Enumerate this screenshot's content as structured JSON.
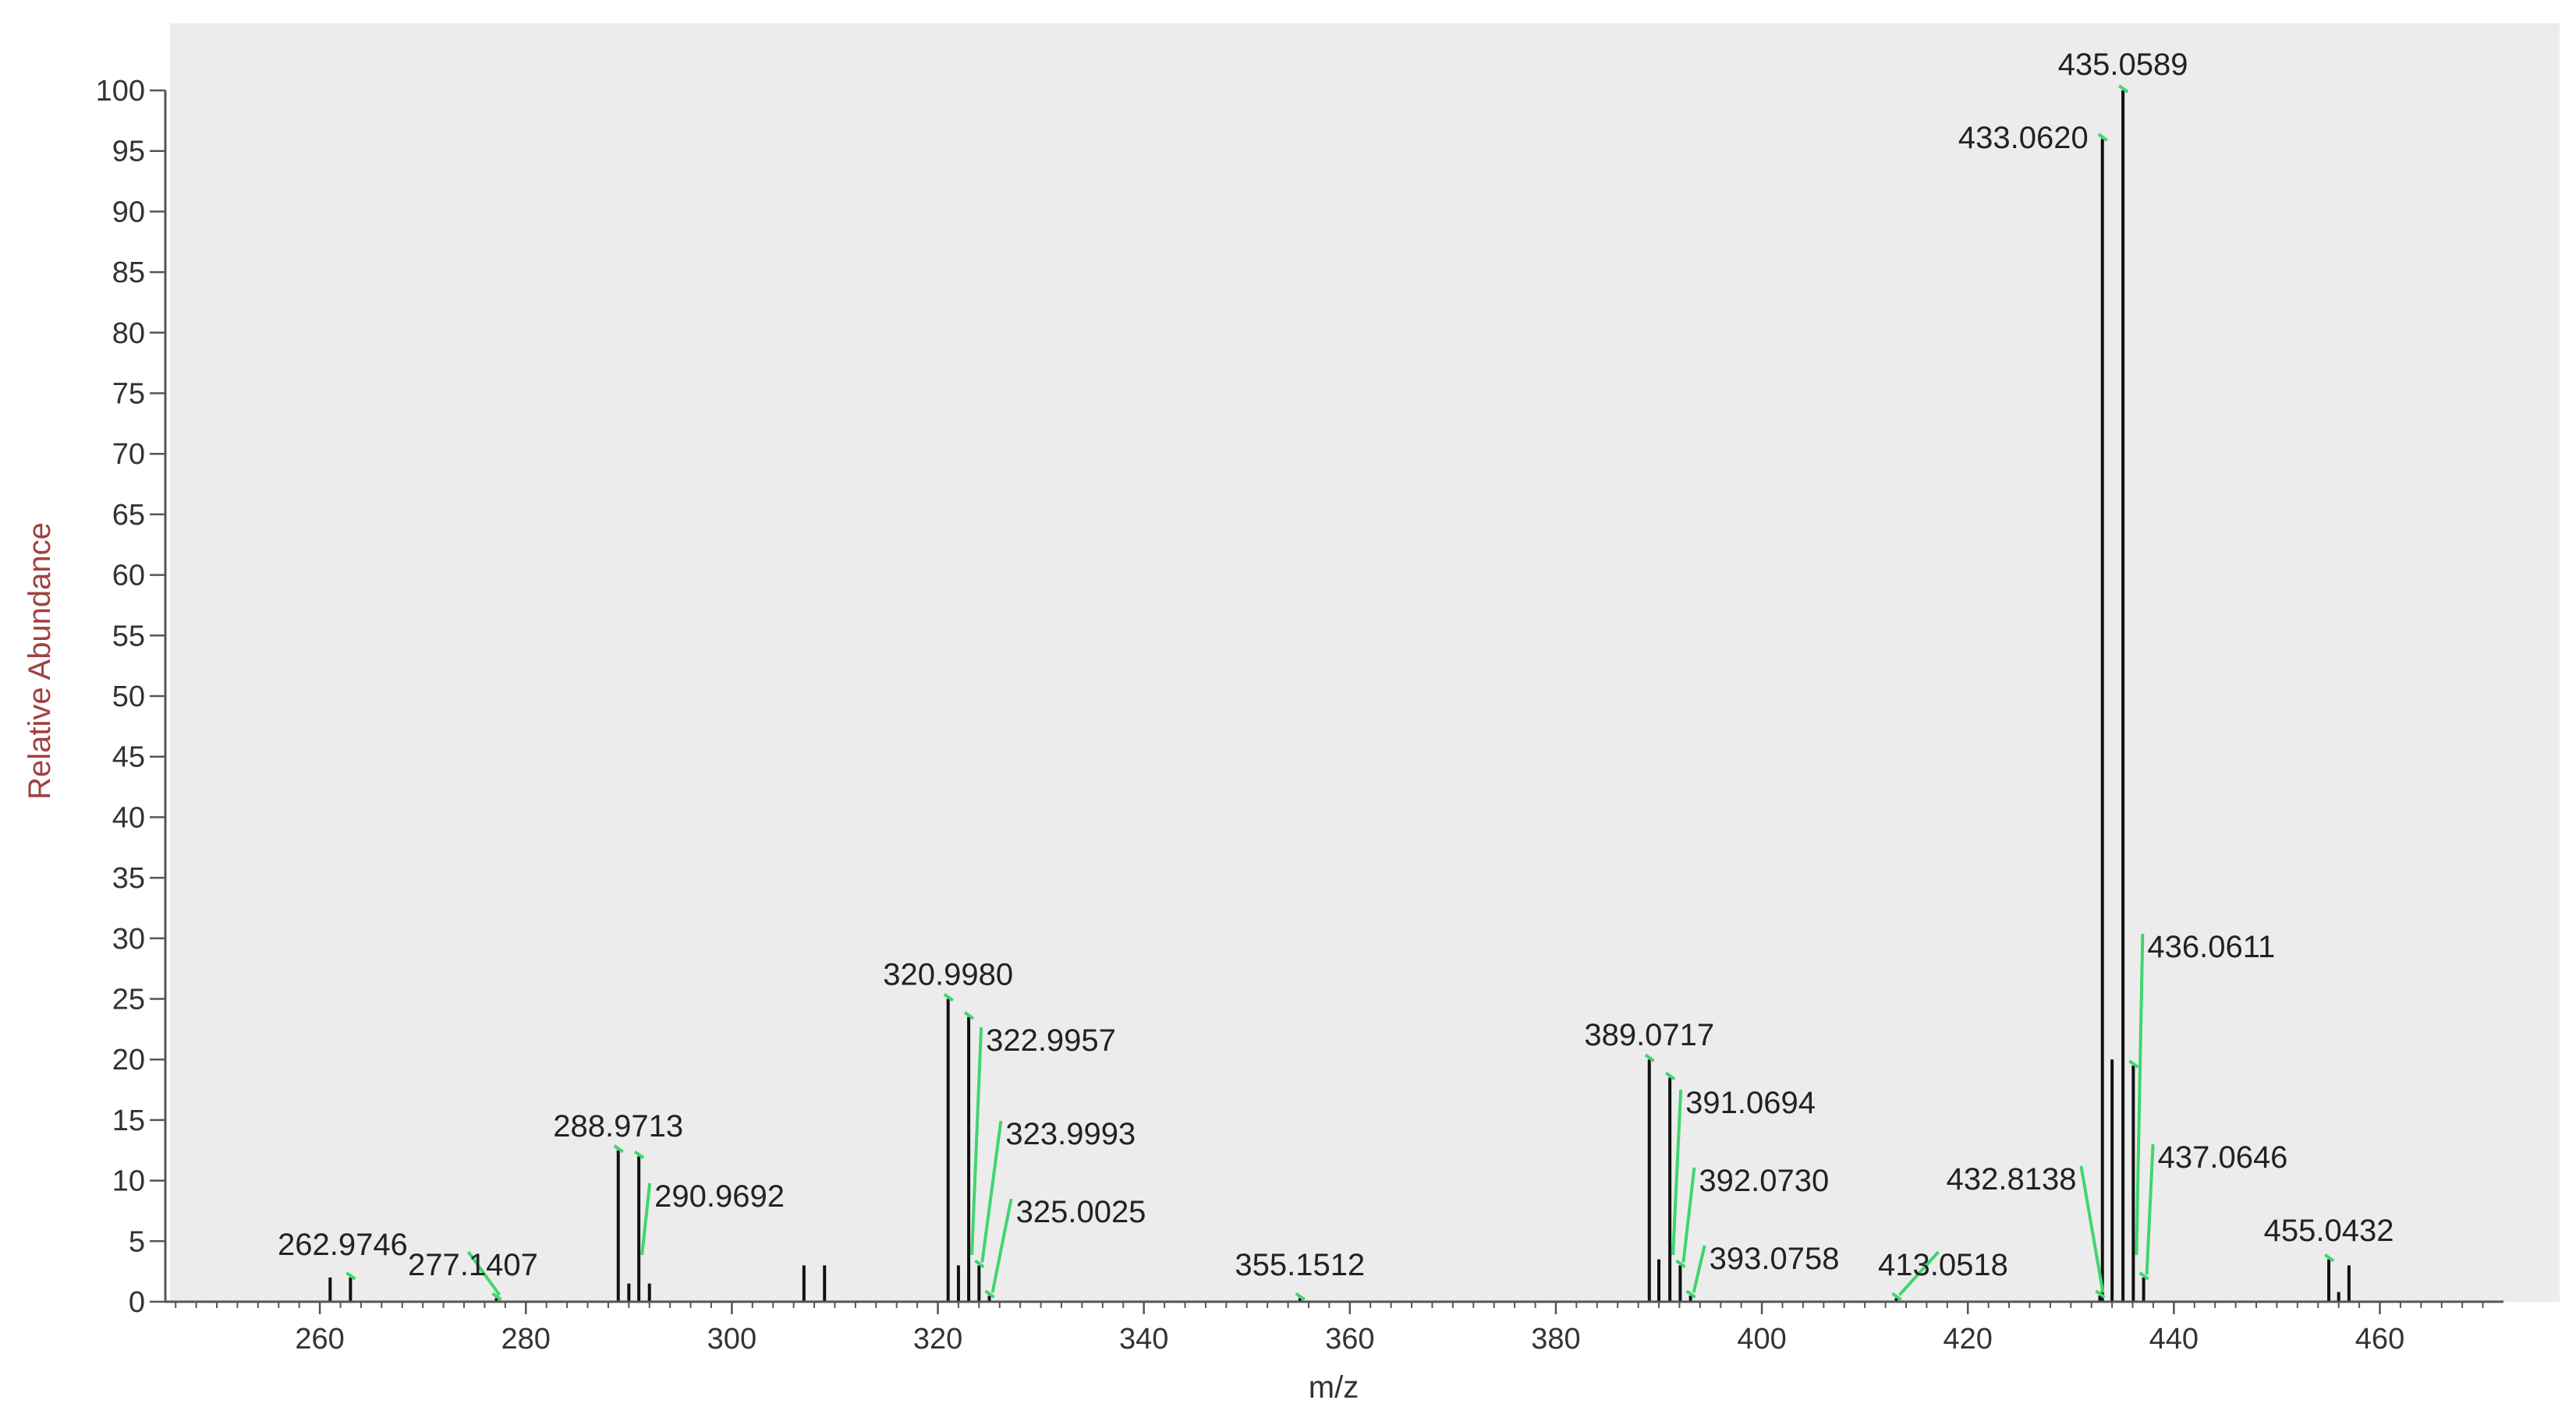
{
  "chart_data": {
    "type": "bar",
    "xlabel": "m/z",
    "ylabel": "Relative Abundance",
    "xlim": [
      245,
      472
    ],
    "ylim": [
      0,
      100
    ],
    "x_ticks": [
      260,
      280,
      300,
      320,
      340,
      360,
      380,
      400,
      420,
      440,
      460
    ],
    "y_ticks": [
      0,
      5,
      10,
      15,
      20,
      25,
      30,
      35,
      40,
      45,
      50,
      55,
      60,
      65,
      70,
      75,
      80,
      85,
      90,
      95,
      100
    ],
    "grid": false,
    "colors": {
      "plot_background": "#ececec",
      "peak": "#111111",
      "label_marker": "#3ed66e",
      "ylabel": "#a04040"
    },
    "peaks": [
      {
        "x": 261.0,
        "y": 2.0
      },
      {
        "x": 262.9746,
        "y": 2.0,
        "label": "262.9746"
      },
      {
        "x": 277.1407,
        "y": 0.3,
        "label": "277.1407"
      },
      {
        "x": 288.9713,
        "y": 12.5,
        "label": "288.9713"
      },
      {
        "x": 290.0,
        "y": 1.5
      },
      {
        "x": 290.9692,
        "y": 12.0,
        "label": "290.9692"
      },
      {
        "x": 292.0,
        "y": 1.5
      },
      {
        "x": 307.0,
        "y": 3.0
      },
      {
        "x": 309.0,
        "y": 3.0
      },
      {
        "x": 320.998,
        "y": 25.0,
        "label": "320.9980"
      },
      {
        "x": 322.0,
        "y": 3.0
      },
      {
        "x": 322.9957,
        "y": 23.5,
        "label": "322.9957"
      },
      {
        "x": 323.9993,
        "y": 3.0,
        "label": "323.9993"
      },
      {
        "x": 325.0025,
        "y": 0.5,
        "label": "325.0025"
      },
      {
        "x": 355.1512,
        "y": 0.3,
        "label": "355.1512"
      },
      {
        "x": 389.0717,
        "y": 20.0,
        "label": "389.0717"
      },
      {
        "x": 390.0,
        "y": 3.5
      },
      {
        "x": 391.0694,
        "y": 18.5,
        "label": "391.0694"
      },
      {
        "x": 392.073,
        "y": 3.0,
        "label": "392.0730"
      },
      {
        "x": 393.0758,
        "y": 0.5,
        "label": "393.0758"
      },
      {
        "x": 413.0518,
        "y": 0.3,
        "label": "413.0518"
      },
      {
        "x": 432.8138,
        "y": 0.5,
        "label": "432.8138"
      },
      {
        "x": 433.062,
        "y": 96.0,
        "label": "433.0620"
      },
      {
        "x": 434.0,
        "y": 20.0
      },
      {
        "x": 435.0589,
        "y": 100.0,
        "label": "435.0589"
      },
      {
        "x": 436.0611,
        "y": 19.5,
        "label": "436.0611"
      },
      {
        "x": 437.0646,
        "y": 2.0,
        "label": "437.0646"
      },
      {
        "x": 455.0432,
        "y": 3.5,
        "label": "455.0432"
      },
      {
        "x": 456.0,
        "y": 0.8
      },
      {
        "x": 457.0,
        "y": 3.0
      }
    ]
  }
}
